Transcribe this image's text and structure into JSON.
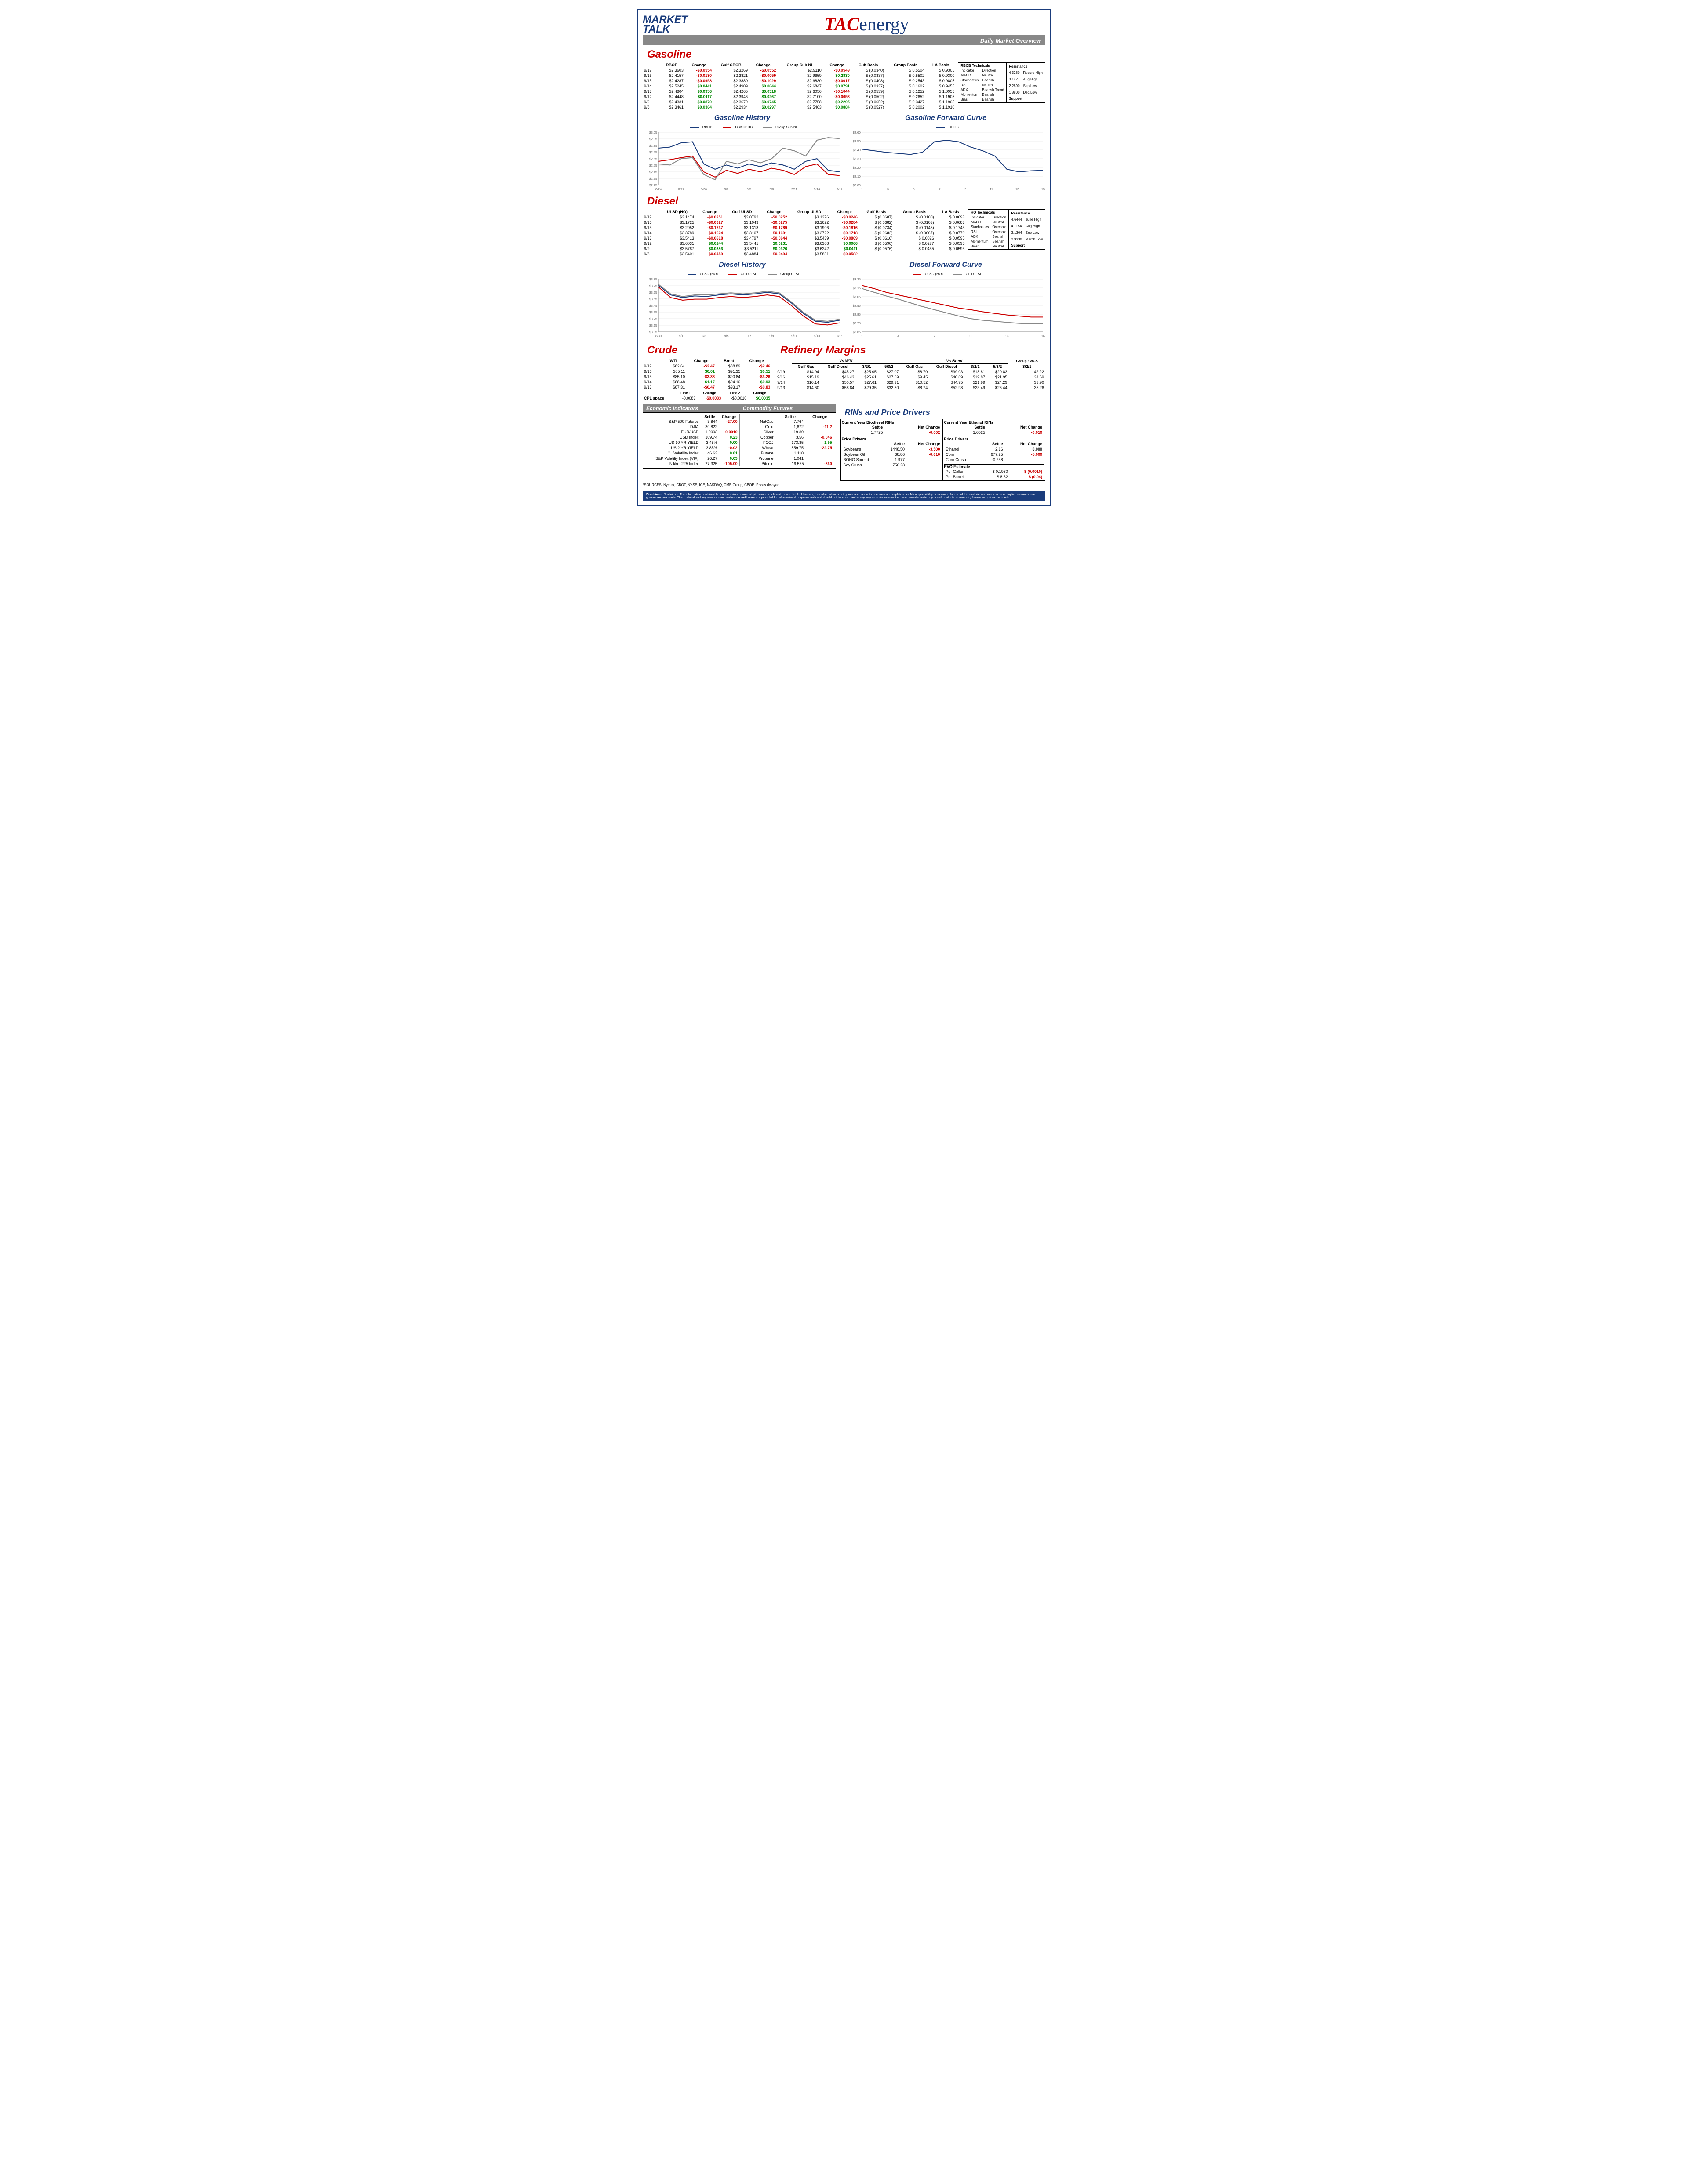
{
  "header": {
    "title": "Daily Market Overview",
    "logo1_line1": "MARKET",
    "logo1_line2": "TALK",
    "logo2_tac": "TAC",
    "logo2_energy": "energy"
  },
  "gasoline": {
    "title": "Gasoline",
    "headers": [
      "",
      "RBOB",
      "Change",
      "Gulf CBOB",
      "Change",
      "Group Sub NL",
      "Change",
      "Gulf Basis",
      "Group Basis",
      "LA Basis"
    ],
    "rows": [
      [
        "9/19",
        "$2.3603",
        "-$0.0554",
        "$2.3269",
        "-$0.0552",
        "$2.9110",
        "-$0.0549",
        "$ (0.0340)",
        "$    0.5504",
        "$    0.9305"
      ],
      [
        "9/16",
        "$2.4157",
        "-$0.0130",
        "$2.3821",
        "-$0.0059",
        "$2.9659",
        "$0.2830",
        "$ (0.0337)",
        "$    0.5502",
        "$    0.9300"
      ],
      [
        "9/15",
        "$2.4287",
        "-$0.0958",
        "$2.3880",
        "-$0.1029",
        "$2.6830",
        "-$0.0017",
        "$ (0.0408)",
        "$    0.2543",
        "$    0.9805"
      ],
      [
        "9/14",
        "$2.5245",
        "$0.0441",
        "$2.4909",
        "$0.0644",
        "$2.6847",
        "$0.0791",
        "$ (0.0337)",
        "$    0.1602",
        "$    0.9455"
      ],
      [
        "9/13",
        "$2.4804",
        "$0.0356",
        "$2.4265",
        "$0.0318",
        "$2.6056",
        "-$0.1044",
        "$ (0.0539)",
        "$    0.1252",
        "$    1.0955"
      ],
      [
        "9/12",
        "$2.4448",
        "$0.0117",
        "$2.3946",
        "$0.0267",
        "$2.7100",
        "-$0.0658",
        "$ (0.0502)",
        "$    0.2652",
        "$    1.1905"
      ],
      [
        "9/9",
        "$2.4331",
        "$0.0870",
        "$2.3679",
        "$0.0745",
        "$2.7758",
        "$0.2295",
        "$ (0.0652)",
        "$    0.3427",
        "$    1.1905"
      ],
      [
        "9/8",
        "$2.3461",
        "$0.0384",
        "$2.2934",
        "$0.0297",
        "$2.5463",
        "$0.0884",
        "$ (0.0527)",
        "$    0.2002",
        "$    1.1910"
      ]
    ],
    "tech_title": "RBOB Technicals",
    "tech_rows": [
      [
        "Indicator",
        "Direction"
      ],
      [
        "MACD",
        "Neutral"
      ],
      [
        "Stochastics",
        "Bearish"
      ],
      [
        "RSI",
        "Neutral"
      ],
      [
        "ADX",
        "Bearish Trend"
      ],
      [
        "Momentum",
        "Bearish"
      ],
      [
        "Bias:",
        "Bearish"
      ]
    ],
    "res_title": "Resistance",
    "res_rows": [
      [
        "4.3260",
        "Record High"
      ],
      [
        "3.1427",
        "Aug High"
      ],
      [
        "2.2890",
        "Sep Low"
      ],
      [
        "1.8800",
        "Dec Low"
      ]
    ],
    "sup_title": "Support",
    "history_title": "Gasoline History",
    "forward_title": "Gasoline Forward Curve",
    "history_legend": [
      [
        "RBOB",
        "#1a3c7c"
      ],
      [
        "Gulf CBOB",
        "#cc0000"
      ],
      [
        "Group Sub NL",
        "#888"
      ]
    ],
    "forward_legend": [
      [
        "RBOB",
        "#1a3c7c"
      ]
    ],
    "history_y": [
      "$3.05",
      "$2.95",
      "$2.85",
      "$2.75",
      "$2.65",
      "$2.55",
      "$2.45",
      "$2.35",
      "$2.25"
    ],
    "history_x": [
      "8/24",
      "8/27",
      "8/30",
      "9/2",
      "9/5",
      "9/8",
      "9/11",
      "9/14",
      "9/17"
    ],
    "forward_y": [
      "$2.60",
      "$2.50",
      "$2.40",
      "$2.30",
      "$2.20",
      "$2.10",
      "$2.00"
    ],
    "forward_x": [
      "1",
      "3",
      "5",
      "7",
      "9",
      "11",
      "13",
      "15"
    ]
  },
  "diesel": {
    "title": "Diesel",
    "headers": [
      "",
      "ULSD (HO)",
      "Change",
      "Gulf ULSD",
      "Change",
      "Group ULSD",
      "Change",
      "Gulf Basis",
      "Group Basis",
      "LA Basis"
    ],
    "rows": [
      [
        "9/19",
        "$3.1474",
        "-$0.0251",
        "$3.0792",
        "-$0.0252",
        "$3.1376",
        "-$0.0246",
        "$ (0.0687)",
        "$   (0.0100)",
        "$    0.0693"
      ],
      [
        "9/16",
        "$3.1725",
        "-$0.0327",
        "$3.1043",
        "-$0.0275",
        "$3.1622",
        "-$0.0284",
        "$ (0.0682)",
        "$   (0.0103)",
        "$    0.0683"
      ],
      [
        "9/15",
        "$3.2052",
        "-$0.1737",
        "$3.1318",
        "-$0.1789",
        "$3.1906",
        "-$0.1816",
        "$ (0.0734)",
        "$   (0.0146)",
        "$    0.1745"
      ],
      [
        "9/14",
        "$3.3789",
        "-$0.1624",
        "$3.3107",
        "-$0.1691",
        "$3.3722",
        "-$0.1718",
        "$ (0.0682)",
        "$   (0.0067)",
        "$    0.0770"
      ],
      [
        "9/13",
        "$3.5413",
        "-$0.0618",
        "$3.4797",
        "-$0.0644",
        "$3.5439",
        "-$0.0869",
        "$ (0.0616)",
        "$    0.0026",
        "$    0.0595"
      ],
      [
        "9/12",
        "$3.6031",
        "$0.0244",
        "$3.5441",
        "$0.0231",
        "$3.6308",
        "$0.0066",
        "$ (0.0590)",
        "$    0.0277",
        "$    0.0595"
      ],
      [
        "9/9",
        "$3.5787",
        "$0.0386",
        "$3.5211",
        "$0.0326",
        "$3.6242",
        "$0.0411",
        "$ (0.0576)",
        "$    0.0455",
        "$    0.0595"
      ],
      [
        "9/8",
        "$3.5401",
        "-$0.0459",
        "$3.4884",
        "-$0.0494",
        "$3.5831",
        "-$0.0582",
        "",
        "",
        ""
      ]
    ],
    "tech_title": "HO Technicals",
    "tech_rows": [
      [
        "Indicator",
        "Direction"
      ],
      [
        "MACD",
        "Neutral"
      ],
      [
        "Stochastics",
        "Oversold"
      ],
      [
        "RSI",
        "Oversold"
      ],
      [
        "ADX",
        "Bearish"
      ],
      [
        "Momentum",
        "Bearish"
      ],
      [
        "Bias:",
        "Neutral"
      ]
    ],
    "res_title": "Resistance",
    "res_rows": [
      [
        "4.6444",
        "June High"
      ],
      [
        "4.1154",
        "Aug High"
      ],
      [
        "3.1304",
        "Sep Low"
      ],
      [
        "2.9330",
        "March Low"
      ]
    ],
    "sup_title": "Support",
    "history_title": "Diesel History",
    "forward_title": "Diesel Forward Curve",
    "history_legend": [
      [
        "ULSD (HO)",
        "#1a3c7c"
      ],
      [
        "Gulf ULSD",
        "#cc0000"
      ],
      [
        "Group ULSD",
        "#888"
      ]
    ],
    "forward_legend": [
      [
        "ULSD (HO)",
        "#cc0000"
      ],
      [
        "Gulf ULSD",
        "#888"
      ]
    ],
    "history_y": [
      "$3.85",
      "$3.75",
      "$3.65",
      "$3.55",
      "$3.45",
      "$3.35",
      "$3.25",
      "$3.15",
      "$3.05"
    ],
    "history_x": [
      "8/30",
      "9/1",
      "9/3",
      "9/5",
      "9/7",
      "9/9",
      "9/11",
      "9/13",
      "9/15"
    ],
    "forward_y": [
      "$3.25",
      "$3.15",
      "$3.05",
      "$2.95",
      "$2.85",
      "$2.75",
      "$2.65"
    ],
    "forward_x": [
      "1",
      "4",
      "7",
      "10",
      "13",
      "16"
    ]
  },
  "crude": {
    "title": "Crude",
    "headers": [
      "",
      "WTI",
      "Change",
      "Brent",
      "Change"
    ],
    "rows": [
      [
        "9/19",
        "$82.64",
        "-$2.47",
        "$88.89",
        "-$2.46"
      ],
      [
        "9/16",
        "$85.11",
        "$0.01",
        "$91.35",
        "$0.51"
      ],
      [
        "9/15",
        "$85.10",
        "-$3.38",
        "$90.84",
        "-$3.26"
      ],
      [
        "9/14",
        "$88.48",
        "$1.17",
        "$94.10",
        "$0.93"
      ],
      [
        "9/13",
        "$87.31",
        "-$0.47",
        "$93.17",
        "-$0.83"
      ]
    ],
    "cpl_label": "CPL space",
    "cpl_headers": [
      "Line 1",
      "Change",
      "Line 2",
      "Change"
    ],
    "cpl_row": [
      "-0.0083",
      "-$0.0083",
      "-$0.0010",
      "$0.0035"
    ]
  },
  "margins": {
    "title": "Refinery Margins",
    "sub_wti": "Vs WTI",
    "sub_brent": "Vs Brent",
    "group_wcs": "Group / WCS",
    "headers": [
      "",
      "Gulf Gas",
      "Gulf Diesel",
      "3/2/1",
      "5/3/2",
      "Gulf Gas",
      "Gulf Diesel",
      "3/2/1",
      "5/3/2",
      "3/2/1"
    ],
    "rows": [
      [
        "9/19",
        "$14.94",
        "$45.27",
        "$25.05",
        "$27.07",
        "$8.70",
        "$39.03",
        "$18.81",
        "$20.83",
        "42.22"
      ],
      [
        "9/16",
        "$15.19",
        "$46.43",
        "$25.61",
        "$27.69",
        "$9.45",
        "$40.69",
        "$19.87",
        "$21.95",
        "34.69"
      ],
      [
        "9/14",
        "$16.14",
        "$50.57",
        "$27.61",
        "$29.91",
        "$10.52",
        "$44.95",
        "$21.99",
        "$24.29",
        "33.90"
      ],
      [
        "9/13",
        "$14.60",
        "$58.84",
        "$29.35",
        "$32.30",
        "$8.74",
        "$52.98",
        "$23.49",
        "$26.44",
        "35.26"
      ]
    ]
  },
  "econ": {
    "title": "Economic Indicators",
    "headers": [
      "",
      "Settle",
      "Change"
    ],
    "rows": [
      [
        "S&P 500 Futures",
        "3,844",
        "-27.00"
      ],
      [
        "DJIA",
        "30,822",
        ""
      ],
      [
        "EUR/USD",
        "1.0003",
        "-0.0010"
      ],
      [
        "USD Index",
        "109.74",
        "0.23"
      ],
      [
        "US 10 YR YIELD",
        "3.45%",
        "0.00"
      ],
      [
        "US 2 YR YIELD",
        "3.85%",
        "-0.02"
      ],
      [
        "Oil Volatility Index",
        "46.63",
        "0.81"
      ],
      [
        "S&P Volatiliy Index (VIX)",
        "26.27",
        "0.03"
      ],
      [
        "Nikkei 225 Index",
        "27,325",
        "-105.00"
      ]
    ]
  },
  "comm": {
    "title": "Commodity Futures",
    "headers": [
      "",
      "Settle",
      "Change"
    ],
    "rows": [
      [
        "NatGas",
        "7.764",
        ""
      ],
      [
        "Gold",
        "1,672",
        "-11.2"
      ],
      [
        "Silver",
        "19.30",
        ""
      ],
      [
        "Copper",
        "3.56",
        "-0.046"
      ],
      [
        "FCOJ",
        "173.35",
        "1.95"
      ],
      [
        "Wheat",
        "859.75",
        "-22.75"
      ],
      [
        "Butane",
        "1.110",
        ""
      ],
      [
        "Propane",
        "1.041",
        ""
      ],
      [
        "Bitcoin",
        "19,575",
        "-860"
      ]
    ]
  },
  "rins": {
    "title": "RINs and Price Drivers",
    "bio_title": "Current Year Biodiesel RINs",
    "eth_title": "Current Year Ethanol RINs",
    "headers": [
      "",
      "Settle",
      "Net Change"
    ],
    "bio_row": [
      "",
      "1.7725",
      "-0.002"
    ],
    "eth_row": [
      "",
      "1.6525",
      "-0.010"
    ],
    "pd_title": "Price Drivers",
    "bio_pd": [
      [
        "Soybeans",
        "1448.50",
        "-3.500"
      ],
      [
        "Soybean Oil",
        "68.86",
        "-0.610"
      ],
      [
        "BOHO Spread",
        "1.977",
        ""
      ],
      [
        "Soy Crush",
        "750.23",
        ""
      ]
    ],
    "eth_pd": [
      [
        "Ethanol",
        "2.16",
        "0.000"
      ],
      [
        "Corn",
        "677.25",
        "-5.000"
      ],
      [
        "Corn Crush",
        "-0.258",
        ""
      ]
    ],
    "rvo_title": "RVO Estimate",
    "rvo_rows": [
      [
        "Per Gallon",
        "$    0.1980",
        "$      (0.0010)"
      ],
      [
        "Per Barrel",
        "$      8.32",
        "$        (0.04)"
      ]
    ]
  },
  "sources": "*SOURCES: Nymex, CBOT, NYSE, ICE, NASDAQ, CME Group, CBOE.   Prices delayed.",
  "disclaimer": "Disclaimer: The information contained herein is derived from multiple sources believed to be reliable. However, this information is not guaranteed as to its accuracy or completeness. No responsibility is assumed for use of this material and no express or implied warranties or guarantees are made. This material and any view or comment expressed herein are provided for informational purposes only and should not be construed in any way as an inducement or recommendation to buy or sell products, commodity futures or options contracts."
}
